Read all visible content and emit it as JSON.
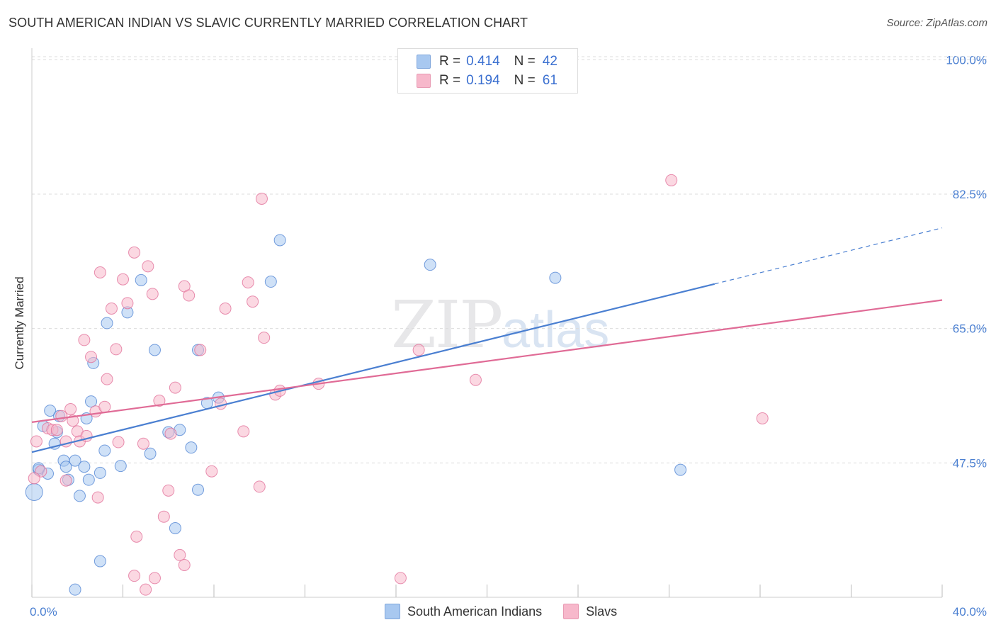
{
  "title": "SOUTH AMERICAN INDIAN VS SLAVIC CURRENTLY MARRIED CORRELATION CHART",
  "source": "Source: ZipAtlas.com",
  "watermark": {
    "zip": "ZIP",
    "atlas": "atlas"
  },
  "legend": {
    "rows": [
      {
        "r_label": "R =",
        "r_value": "0.414",
        "n_label": "N =",
        "n_value": "42",
        "color": "#a8c8f0"
      },
      {
        "r_label": "R =",
        "r_value": "0.194",
        "n_label": "N =",
        "n_value": "61",
        "color": "#f7b8cb"
      }
    ]
  },
  "bottom_legend": [
    {
      "label": "South American Indians",
      "color": "#a8c8f0"
    },
    {
      "label": "Slavs",
      "color": "#f7b8cb"
    }
  ],
  "chart_data": {
    "type": "scatter",
    "title": "SOUTH AMERICAN INDIAN VS SLAVIC CURRENTLY MARRIED CORRELATION CHART",
    "xlabel": "",
    "ylabel": "Currently Married",
    "xlim": [
      0,
      40
    ],
    "ylim": [
      30,
      101.5
    ],
    "x_tick_labels": [
      "0.0%",
      "40.0%"
    ],
    "y_ticks": [
      47.5,
      65.0,
      82.5,
      100.0
    ],
    "y_tick_labels": [
      "47.5%",
      "65.0%",
      "82.5%",
      "100.0%"
    ],
    "grid": true,
    "series": [
      {
        "name": "South American Indians",
        "color": "#4a7fd1",
        "fill": "#a8c8f0",
        "points": [
          [
            0.1,
            43.7
          ],
          [
            0.3,
            46.6
          ],
          [
            0.5,
            52.3
          ],
          [
            0.7,
            46.1
          ],
          [
            0.8,
            54.3
          ],
          [
            1.0,
            50.0
          ],
          [
            1.1,
            51.5
          ],
          [
            1.2,
            53.6
          ],
          [
            1.4,
            47.8
          ],
          [
            1.5,
            47.0
          ],
          [
            1.6,
            45.3
          ],
          [
            1.9,
            47.8
          ],
          [
            2.1,
            43.2
          ],
          [
            2.3,
            47.0
          ],
          [
            2.4,
            53.3
          ],
          [
            2.5,
            45.3
          ],
          [
            2.6,
            55.5
          ],
          [
            2.7,
            60.5
          ],
          [
            3.0,
            46.2
          ],
          [
            3.0,
            34.7
          ],
          [
            3.2,
            49.1
          ],
          [
            3.3,
            65.7
          ],
          [
            3.9,
            47.1
          ],
          [
            4.2,
            67.1
          ],
          [
            4.8,
            71.3
          ],
          [
            5.2,
            48.7
          ],
          [
            5.4,
            62.2
          ],
          [
            6.0,
            51.5
          ],
          [
            6.3,
            39.0
          ],
          [
            6.5,
            51.8
          ],
          [
            7.0,
            49.5
          ],
          [
            7.3,
            62.2
          ],
          [
            7.3,
            44.0
          ],
          [
            7.7,
            55.3
          ],
          [
            8.2,
            56.0
          ],
          [
            10.5,
            71.1
          ],
          [
            10.9,
            76.5
          ],
          [
            1.9,
            31.0
          ],
          [
            17.5,
            73.3
          ],
          [
            23.0,
            71.6
          ],
          [
            28.5,
            46.6
          ],
          [
            0.3,
            46.8
          ]
        ]
      },
      {
        "name": "Slavs",
        "color": "#e06b96",
        "fill": "#f7b8cb",
        "points": [
          [
            0.2,
            50.3
          ],
          [
            0.4,
            46.4
          ],
          [
            0.7,
            52.0
          ],
          [
            0.9,
            51.8
          ],
          [
            1.1,
            51.8
          ],
          [
            1.3,
            53.6
          ],
          [
            1.5,
            50.3
          ],
          [
            1.7,
            54.5
          ],
          [
            1.8,
            53.0
          ],
          [
            2.0,
            51.6
          ],
          [
            2.1,
            50.3
          ],
          [
            2.3,
            63.5
          ],
          [
            2.4,
            51.0
          ],
          [
            2.6,
            61.3
          ],
          [
            2.8,
            54.2
          ],
          [
            3.0,
            72.3
          ],
          [
            3.2,
            54.8
          ],
          [
            3.3,
            58.4
          ],
          [
            3.5,
            67.6
          ],
          [
            3.7,
            62.3
          ],
          [
            3.8,
            50.2
          ],
          [
            4.0,
            71.4
          ],
          [
            4.2,
            68.3
          ],
          [
            4.5,
            74.9
          ],
          [
            4.6,
            37.9
          ],
          [
            4.5,
            32.8
          ],
          [
            4.9,
            50.0
          ],
          [
            5.1,
            73.1
          ],
          [
            5.3,
            69.5
          ],
          [
            5.4,
            32.5
          ],
          [
            5.6,
            55.6
          ],
          [
            5.8,
            40.5
          ],
          [
            6.0,
            43.9
          ],
          [
            6.1,
            51.3
          ],
          [
            6.3,
            57.3
          ],
          [
            6.5,
            35.5
          ],
          [
            6.7,
            34.2
          ],
          [
            6.7,
            70.5
          ],
          [
            6.9,
            69.3
          ],
          [
            7.4,
            62.2
          ],
          [
            7.9,
            46.4
          ],
          [
            8.3,
            55.2
          ],
          [
            8.5,
            67.6
          ],
          [
            9.3,
            51.6
          ],
          [
            9.5,
            71.0
          ],
          [
            9.7,
            68.5
          ],
          [
            10.0,
            44.4
          ],
          [
            10.1,
            81.9
          ],
          [
            10.2,
            63.8
          ],
          [
            10.7,
            56.4
          ],
          [
            10.9,
            56.9
          ],
          [
            12.6,
            57.8
          ],
          [
            16.2,
            32.5
          ],
          [
            17.0,
            62.2
          ],
          [
            19.5,
            58.3
          ],
          [
            28.1,
            84.3
          ],
          [
            32.1,
            53.3
          ],
          [
            1.5,
            45.2
          ],
          [
            2.9,
            43.0
          ],
          [
            0.1,
            45.5
          ],
          [
            5.0,
            31.0
          ]
        ]
      }
    ],
    "trend_lines": [
      {
        "series": "South American Indians",
        "x0": 0,
        "y0": 48.9,
        "x1": 30.0,
        "y1": 70.8,
        "dashed_to": [
          40,
          78.1
        ]
      },
      {
        "series": "Slavs",
        "x0": 0,
        "y0": 52.8,
        "x1": 40,
        "y1": 68.7
      }
    ]
  }
}
